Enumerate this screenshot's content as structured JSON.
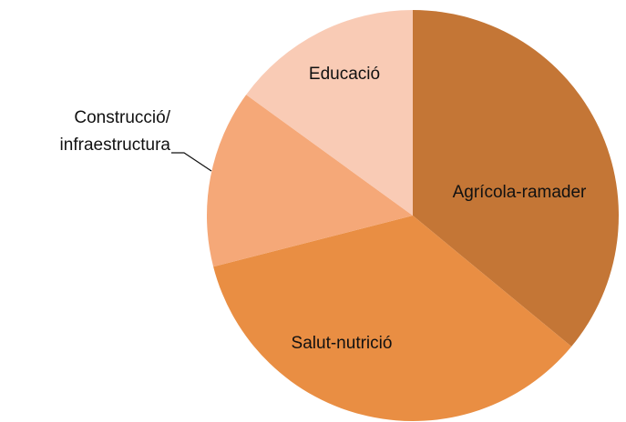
{
  "chart_data": {
    "type": "pie",
    "categories": [
      "Agrícola-ramader",
      "Salut-nutrició",
      "Construcció/infraestructura",
      "Educació"
    ],
    "values": [
      36,
      35,
      14,
      15
    ],
    "colors": [
      "#c47636",
      "#e98e43",
      "#f5a878",
      "#f9cbb5"
    ]
  }
}
